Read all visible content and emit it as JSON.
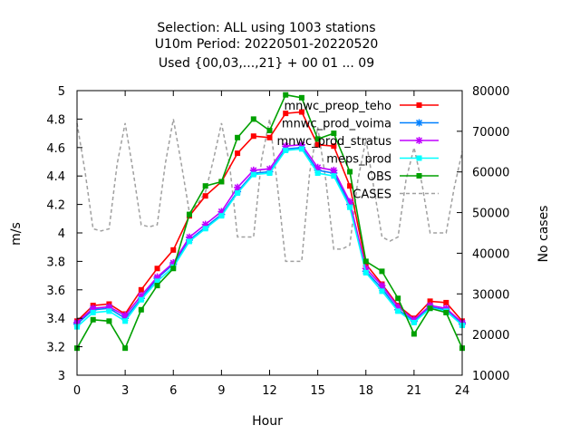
{
  "chart_data": {
    "type": "line",
    "title_lines": [
      "Selection: ALL using  1003 stations",
      "U10m   Period: 20220501-20220520",
      "Used {00,03,...,21} + 00 01 ... 09"
    ],
    "xlabel": "Hour",
    "ylabel": "m/s",
    "y2label": "No cases",
    "xlim": [
      0,
      24
    ],
    "ylim": [
      3,
      5
    ],
    "y2lim": [
      10000,
      80000
    ],
    "xticks": [
      "0",
      "3",
      "6",
      "9",
      "12",
      "15",
      "18",
      "21",
      "24"
    ],
    "yticks": [
      "3",
      "3.2",
      "3.4",
      "3.6",
      "3.8",
      "4",
      "4.2",
      "4.4",
      "4.6",
      "4.8",
      "5"
    ],
    "y2ticks": [
      "10000",
      "20000",
      "30000",
      "40000",
      "50000",
      "60000",
      "70000",
      "80000"
    ],
    "legend_position": "top-right",
    "grid": false,
    "x": [
      0,
      1,
      2,
      3,
      4,
      5,
      6,
      7,
      8,
      9,
      10,
      11,
      12,
      13,
      14,
      15,
      16,
      17,
      18,
      19,
      20,
      21,
      22,
      23,
      24
    ],
    "series": [
      {
        "name": "mnwc_preop_teho",
        "color": "#ff0000",
        "marker": "square",
        "values": [
          3.38,
          3.49,
          3.5,
          3.43,
          3.6,
          3.75,
          3.88,
          4.12,
          4.26,
          4.36,
          4.56,
          4.68,
          4.67,
          4.84,
          4.85,
          4.62,
          4.61,
          4.33,
          3.78,
          3.64,
          3.49,
          3.4,
          3.52,
          3.51,
          3.38
        ]
      },
      {
        "name": "mnwc_prod_voima",
        "color": "#0080ff",
        "marker": "star",
        "values": [
          3.36,
          3.46,
          3.47,
          3.4,
          3.54,
          3.68,
          3.78,
          3.95,
          4.04,
          4.13,
          4.29,
          4.42,
          4.43,
          4.59,
          4.6,
          4.44,
          4.42,
          4.2,
          3.73,
          3.61,
          3.46,
          3.38,
          3.48,
          3.46,
          3.36
        ]
      },
      {
        "name": "mnwc_prod_stratus",
        "color": "#c000ff",
        "marker": "star",
        "values": [
          3.37,
          3.47,
          3.48,
          3.42,
          3.56,
          3.69,
          3.79,
          3.97,
          4.06,
          4.15,
          4.32,
          4.44,
          4.45,
          4.61,
          4.62,
          4.46,
          4.44,
          4.22,
          3.75,
          3.63,
          3.48,
          3.39,
          3.49,
          3.47,
          3.37
        ]
      },
      {
        "name": "meps_prod",
        "color": "#00ffff",
        "marker": "square",
        "values": [
          3.34,
          3.44,
          3.45,
          3.38,
          3.53,
          3.66,
          3.76,
          3.94,
          4.03,
          4.12,
          4.28,
          4.41,
          4.42,
          4.58,
          4.59,
          4.42,
          4.4,
          4.18,
          3.72,
          3.59,
          3.45,
          3.37,
          3.47,
          3.45,
          3.35
        ]
      },
      {
        "name": "OBS",
        "color": "#00a000",
        "marker": "square",
        "values": [
          3.19,
          3.39,
          3.38,
          3.19,
          3.46,
          3.63,
          3.75,
          4.13,
          4.33,
          4.36,
          4.67,
          4.8,
          4.72,
          4.97,
          4.95,
          4.66,
          4.7,
          4.43,
          3.8,
          3.73,
          3.54,
          3.29,
          3.47,
          3.44,
          3.19
        ]
      }
    ],
    "cases": {
      "name": "CASES",
      "color": "#a0a0a0",
      "axis": "y2",
      "x": [
        0,
        0.5,
        1,
        1.5,
        2,
        2.5,
        3,
        3.5,
        4,
        4.5,
        5,
        5.5,
        6,
        6.5,
        7,
        7.5,
        8,
        8.5,
        9,
        9.5,
        10,
        10.5,
        11,
        11.5,
        12,
        12.5,
        13,
        13.5,
        14,
        14.5,
        15,
        15.5,
        16,
        16.5,
        17,
        17.5,
        18,
        18.5,
        19,
        19.5,
        20,
        20.5,
        21,
        21.5,
        22,
        22.5,
        23,
        23.5,
        24
      ],
      "values": [
        72000,
        60000,
        46000,
        45500,
        46000,
        62000,
        72000,
        60000,
        47000,
        46500,
        47000,
        62000,
        73000,
        62000,
        50000,
        52000,
        55000,
        63000,
        72000,
        62000,
        44000,
        44000,
        44000,
        63000,
        73000,
        56000,
        38000,
        38000,
        38000,
        60000,
        71000,
        58000,
        41000,
        41000,
        42000,
        58000,
        68000,
        56000,
        44000,
        43000,
        44000,
        58000,
        66000,
        57000,
        45000,
        45000,
        45000,
        56000,
        65000
      ]
    }
  }
}
